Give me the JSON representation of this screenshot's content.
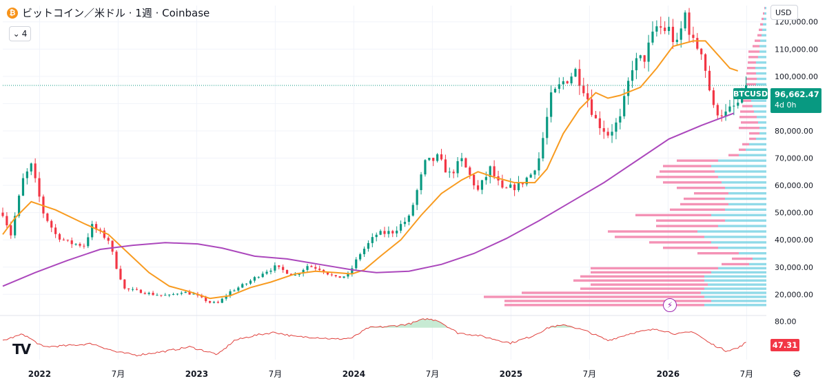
{
  "header": {
    "coin_icon_char": "₿",
    "title": "ビットコイン／米ドル · 1週 · Coinbase",
    "indicator_toggle": "⌄",
    "indicator_count": "4"
  },
  "currency": "USD",
  "logo": "TV",
  "settings_icon": "⚙",
  "bolt_icon": "⚡",
  "chart_data": {
    "type": "candlestick",
    "symbol": "BTCUSD",
    "interval": "1W",
    "exchange": "Coinbase",
    "x_labels": [
      "2022",
      "7月",
      "2023",
      "7月",
      "2024",
      "7月",
      "2025",
      "7月",
      "2026",
      "7月"
    ],
    "price_axis": {
      "ticks": [
        "120,000.00",
        "110,000.00",
        "100,000.00",
        "90,000.00",
        "80,000.00",
        "70,000.00",
        "60,000.00",
        "50,000.00",
        "40,000.00",
        "30,000.00",
        "20,000.00"
      ],
      "tick_values": [
        120000,
        110000,
        100000,
        90000,
        80000,
        70000,
        60000,
        50000,
        40000,
        30000,
        20000
      ],
      "range": [
        13000,
        126000
      ]
    },
    "last_price": "96,662.47",
    "last_price_value": 96662.47,
    "countdown": "4d 0h",
    "rsi_axis": {
      "ticks": [
        "80.00"
      ],
      "tick_values": [
        80
      ],
      "range": [
        20,
        85
      ]
    },
    "rsi_last": "47.31",
    "rsi_last_value": 47.31,
    "keypoints": [
      {
        "t": 0,
        "p": 50000
      },
      {
        "t": 2,
        "p": 42000
      },
      {
        "t": 5,
        "p": 62000
      },
      {
        "t": 7,
        "p": 67000
      },
      {
        "t": 10,
        "p": 50000
      },
      {
        "t": 13,
        "p": 42000
      },
      {
        "t": 16,
        "p": 39000
      },
      {
        "t": 20,
        "p": 38000
      },
      {
        "t": 22,
        "p": 45000
      },
      {
        "t": 26,
        "p": 40000
      },
      {
        "t": 28,
        "p": 30000
      },
      {
        "t": 30,
        "p": 22000
      },
      {
        "t": 34,
        "p": 21000
      },
      {
        "t": 37,
        "p": 20000
      },
      {
        "t": 41,
        "p": 19500
      },
      {
        "t": 44,
        "p": 21000
      },
      {
        "t": 47,
        "p": 20000
      },
      {
        "t": 51,
        "p": 17000
      },
      {
        "t": 53,
        "p": 16800
      },
      {
        "t": 56,
        "p": 21000
      },
      {
        "t": 60,
        "p": 24000
      },
      {
        "t": 64,
        "p": 28000
      },
      {
        "t": 67,
        "p": 30000
      },
      {
        "t": 72,
        "p": 27000
      },
      {
        "t": 75,
        "p": 30500
      },
      {
        "t": 78,
        "p": 29500
      },
      {
        "t": 82,
        "p": 26000
      },
      {
        "t": 85,
        "p": 27000
      },
      {
        "t": 88,
        "p": 35000
      },
      {
        "t": 92,
        "p": 42000
      },
      {
        "t": 96,
        "p": 43000
      },
      {
        "t": 100,
        "p": 48000
      },
      {
        "t": 104,
        "p": 68000
      },
      {
        "t": 107,
        "p": 70000
      },
      {
        "t": 110,
        "p": 64000
      },
      {
        "t": 113,
        "p": 69000
      },
      {
        "t": 117,
        "p": 58000
      },
      {
        "t": 120,
        "p": 66000
      },
      {
        "t": 123,
        "p": 58000
      },
      {
        "t": 127,
        "p": 60000
      },
      {
        "t": 130,
        "p": 64000
      },
      {
        "t": 132,
        "p": 70000
      },
      {
        "t": 135,
        "p": 92000
      },
      {
        "t": 138,
        "p": 98000
      },
      {
        "t": 141,
        "p": 102000
      },
      {
        "t": 143,
        "p": 96000
      },
      {
        "t": 146,
        "p": 84000
      },
      {
        "t": 149,
        "p": 79000
      },
      {
        "t": 152,
        "p": 84000
      },
      {
        "t": 155,
        "p": 104000
      },
      {
        "t": 158,
        "p": 107000
      },
      {
        "t": 161,
        "p": 118000
      },
      {
        "t": 164,
        "p": 117000
      },
      {
        "t": 166,
        "p": 111000
      },
      {
        "t": 168,
        "p": 123000
      },
      {
        "t": 170,
        "p": 112000
      },
      {
        "t": 172,
        "p": 110000
      },
      {
        "t": 175,
        "p": 88000
      },
      {
        "t": 178,
        "p": 86000
      },
      {
        "t": 181,
        "p": 90000
      },
      {
        "t": 183,
        "p": 96662
      }
    ],
    "series": [
      {
        "name": "MA short (orange)",
        "color": "#f89b20",
        "points": [
          {
            "t": 0,
            "p": 42000
          },
          {
            "t": 3,
            "p": 48000
          },
          {
            "t": 7,
            "p": 54000
          },
          {
            "t": 13,
            "p": 51000
          },
          {
            "t": 20,
            "p": 46000
          },
          {
            "t": 26,
            "p": 42000
          },
          {
            "t": 31,
            "p": 35000
          },
          {
            "t": 36,
            "p": 28000
          },
          {
            "t": 41,
            "p": 23000
          },
          {
            "t": 46,
            "p": 21000
          },
          {
            "t": 51,
            "p": 18500
          },
          {
            "t": 56,
            "p": 19500
          },
          {
            "t": 61,
            "p": 22500
          },
          {
            "t": 66,
            "p": 24500
          },
          {
            "t": 72,
            "p": 27500
          },
          {
            "t": 77,
            "p": 28500
          },
          {
            "t": 82,
            "p": 28000
          },
          {
            "t": 86,
            "p": 27500
          },
          {
            "t": 89,
            "p": 29000
          },
          {
            "t": 93,
            "p": 34000
          },
          {
            "t": 98,
            "p": 40000
          },
          {
            "t": 103,
            "p": 49000
          },
          {
            "t": 108,
            "p": 57000
          },
          {
            "t": 113,
            "p": 62000
          },
          {
            "t": 117,
            "p": 65000
          },
          {
            "t": 121,
            "p": 63000
          },
          {
            "t": 126,
            "p": 61000
          },
          {
            "t": 131,
            "p": 61000
          },
          {
            "t": 134,
            "p": 66000
          },
          {
            "t": 138,
            "p": 79000
          },
          {
            "t": 142,
            "p": 88000
          },
          {
            "t": 146,
            "p": 94000
          },
          {
            "t": 149,
            "p": 92000
          },
          {
            "t": 152,
            "p": 93000
          },
          {
            "t": 157,
            "p": 96000
          },
          {
            "t": 161,
            "p": 103000
          },
          {
            "t": 165,
            "p": 111000
          },
          {
            "t": 170,
            "p": 113000
          },
          {
            "t": 173,
            "p": 113000
          },
          {
            "t": 176,
            "p": 108000
          },
          {
            "t": 179,
            "p": 103000
          },
          {
            "t": 181,
            "p": 102000
          }
        ]
      },
      {
        "name": "MA long (purple)",
        "color": "#ab47bc",
        "points": [
          {
            "t": 0,
            "p": 23000
          },
          {
            "t": 8,
            "p": 28000
          },
          {
            "t": 16,
            "p": 32500
          },
          {
            "t": 24,
            "p": 36500
          },
          {
            "t": 32,
            "p": 38000
          },
          {
            "t": 40,
            "p": 39000
          },
          {
            "t": 48,
            "p": 38500
          },
          {
            "t": 54,
            "p": 37000
          },
          {
            "t": 62,
            "p": 34000
          },
          {
            "t": 70,
            "p": 33000
          },
          {
            "t": 78,
            "p": 31000
          },
          {
            "t": 86,
            "p": 29000
          },
          {
            "t": 92,
            "p": 28000
          },
          {
            "t": 100,
            "p": 28500
          },
          {
            "t": 108,
            "p": 31000
          },
          {
            "t": 116,
            "p": 35000
          },
          {
            "t": 124,
            "p": 40500
          },
          {
            "t": 132,
            "p": 47000
          },
          {
            "t": 140,
            "p": 54000
          },
          {
            "t": 148,
            "p": 61000
          },
          {
            "t": 156,
            "p": 69000
          },
          {
            "t": 164,
            "p": 77000
          },
          {
            "t": 172,
            "p": 82000
          },
          {
            "t": 180,
            "p": 86500
          }
        ]
      }
    ],
    "rsi_keypoints": [
      {
        "t": 0,
        "v": 50
      },
      {
        "t": 5,
        "v": 60
      },
      {
        "t": 10,
        "v": 40
      },
      {
        "t": 16,
        "v": 42
      },
      {
        "t": 22,
        "v": 45
      },
      {
        "t": 28,
        "v": 32
      },
      {
        "t": 33,
        "v": 27
      },
      {
        "t": 40,
        "v": 33
      },
      {
        "t": 46,
        "v": 40
      },
      {
        "t": 53,
        "v": 28
      },
      {
        "t": 57,
        "v": 50
      },
      {
        "t": 62,
        "v": 58
      },
      {
        "t": 67,
        "v": 63
      },
      {
        "t": 72,
        "v": 56
      },
      {
        "t": 77,
        "v": 55
      },
      {
        "t": 82,
        "v": 52
      },
      {
        "t": 86,
        "v": 54
      },
      {
        "t": 90,
        "v": 70
      },
      {
        "t": 95,
        "v": 72
      },
      {
        "t": 100,
        "v": 76
      },
      {
        "t": 104,
        "v": 84
      },
      {
        "t": 107,
        "v": 82
      },
      {
        "t": 112,
        "v": 62
      },
      {
        "t": 117,
        "v": 58
      },
      {
        "t": 121,
        "v": 52
      },
      {
        "t": 125,
        "v": 46
      },
      {
        "t": 130,
        "v": 56
      },
      {
        "t": 135,
        "v": 72
      },
      {
        "t": 139,
        "v": 74
      },
      {
        "t": 144,
        "v": 64
      },
      {
        "t": 149,
        "v": 50
      },
      {
        "t": 155,
        "v": 62
      },
      {
        "t": 161,
        "v": 68
      },
      {
        "t": 166,
        "v": 60
      },
      {
        "t": 170,
        "v": 64
      },
      {
        "t": 174,
        "v": 46
      },
      {
        "t": 178,
        "v": 34
      },
      {
        "t": 181,
        "v": 38
      },
      {
        "t": 183,
        "v": 47.31
      }
    ],
    "volume_profile": {
      "levels": [
        16000,
        17500,
        19000,
        20500,
        22000,
        23500,
        25000,
        26500,
        28000,
        29500,
        31000,
        33000,
        35000,
        37000,
        39000,
        41000,
        43000,
        45000,
        47000,
        49000,
        51000,
        53000,
        55000,
        57000,
        59000,
        61000,
        63000,
        65000,
        67000,
        69000,
        71000,
        73000,
        75000,
        77000,
        79000,
        81000,
        83000,
        85000,
        87000,
        89000,
        91000,
        93000,
        95000,
        97000,
        99000,
        101000,
        103000,
        105000,
        107000,
        109000,
        111000,
        113000,
        115000,
        117000,
        119000,
        121000,
        123000,
        125000
      ],
      "down_volume": [
        290,
        300,
        320,
        260,
        180,
        170,
        190,
        180,
        175,
        185,
        40,
        30,
        60,
        80,
        90,
        130,
        130,
        90,
        100,
        110,
        80,
        70,
        60,
        50,
        70,
        85,
        90,
        80,
        70,
        60,
        15,
        10,
        10,
        10,
        15,
        30,
        25,
        25,
        20,
        15,
        12,
        12,
        18,
        15,
        16,
        14,
        12,
        12,
        14,
        16,
        10,
        8,
        6,
        5,
        4,
        3,
        2,
        1
      ],
      "up_volume": [
        90,
        80,
        90,
        95,
        90,
        85,
        90,
        90,
        80,
        70,
        25,
        20,
        40,
        70,
        80,
        90,
        100,
        70,
        60,
        80,
        60,
        55,
        60,
        55,
        60,
        65,
        70,
        75,
        80,
        70,
        40,
        30,
        25,
        15,
        10,
        10,
        12,
        14,
        18,
        20,
        22,
        20,
        18,
        15,
        14,
        15,
        16,
        15,
        12,
        10,
        10,
        9,
        7,
        6,
        5,
        4,
        3,
        2
      ]
    },
    "colors": {
      "up": "#089981",
      "down": "#f23645",
      "vp_up": "#7dd3e4",
      "vp_down": "#f27fa8",
      "rsi": "#e0403c",
      "rsi_fill": "#b9e5c8",
      "grid": "#f0f3fa",
      "last_line": "#089981"
    }
  }
}
